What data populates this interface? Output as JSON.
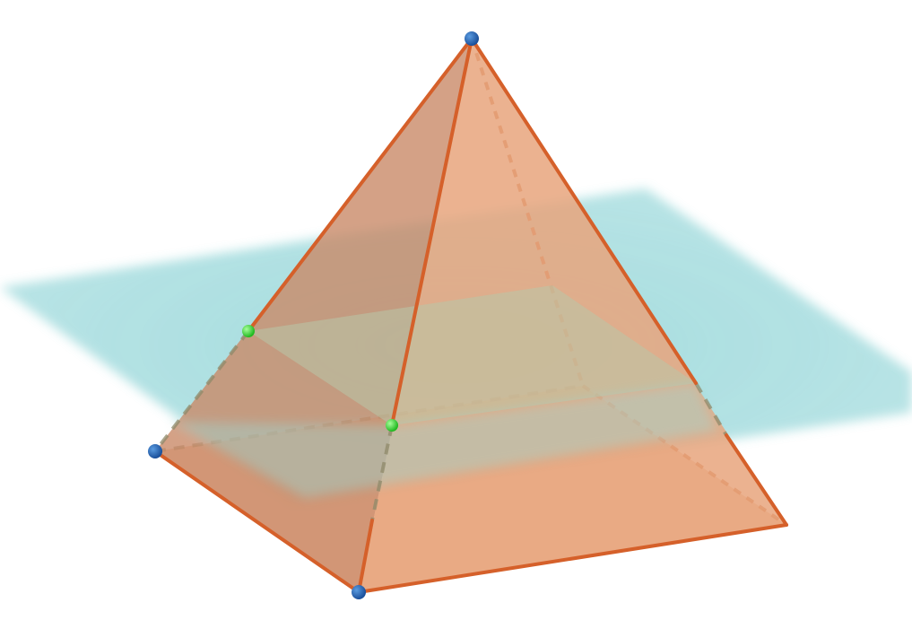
{
  "title": "",
  "diagram": {
    "kind": "square-pyramid-cut-by-plane",
    "solid_color": "#e8996a",
    "edge_color": "#d5602a",
    "plane_color": "#8fd4d6",
    "vertex_color": "#1a5fb4",
    "intersection_point_color": "#33dd33",
    "labels": []
  }
}
